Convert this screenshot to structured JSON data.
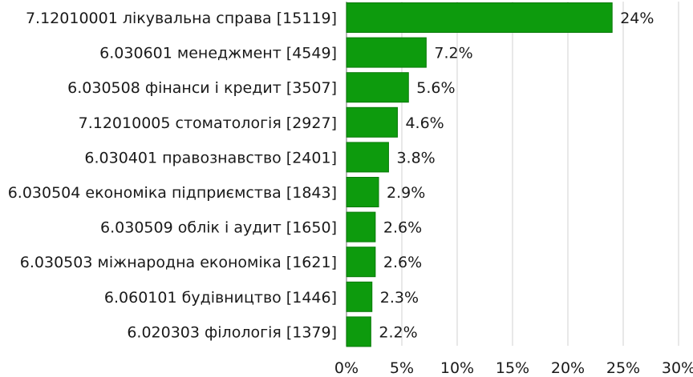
{
  "chart_data": {
    "type": "bar",
    "orientation": "horizontal",
    "categories": [
      "7.12010001 лікувальна справа [15119]",
      "6.030601 менеджмент [4549]",
      "6.030508 фінанси і кредит [3507]",
      "7.12010005 стоматологія [2927]",
      "6.030401 правознавство [2401]",
      "6.030504 економіка підприємства [1843]",
      "6.030509 облік і аудит [1650]",
      "6.030503 міжнародна економіка [1621]",
      "6.060101 будівництво [1446]",
      "6.020303 філологія [1379]"
    ],
    "values": [
      24,
      7.2,
      5.6,
      4.6,
      3.8,
      2.9,
      2.6,
      2.6,
      2.3,
      2.2
    ],
    "value_labels": [
      "24%",
      "7.2%",
      "5.6%",
      "4.6%",
      "3.8%",
      "2.9%",
      "2.6%",
      "2.6%",
      "2.3%",
      "2.2%"
    ],
    "x_ticks": [
      "0%",
      "5%",
      "10%",
      "15%",
      "20%",
      "25%",
      "30%"
    ],
    "xlim": [
      0,
      30
    ],
    "grid": "vertical",
    "bar_color": "#0d9b0d",
    "bar_edge_color": "#0a7a0a",
    "grid_color": "#d9d9d9",
    "title": "",
    "xlabel": "",
    "ylabel": ""
  }
}
